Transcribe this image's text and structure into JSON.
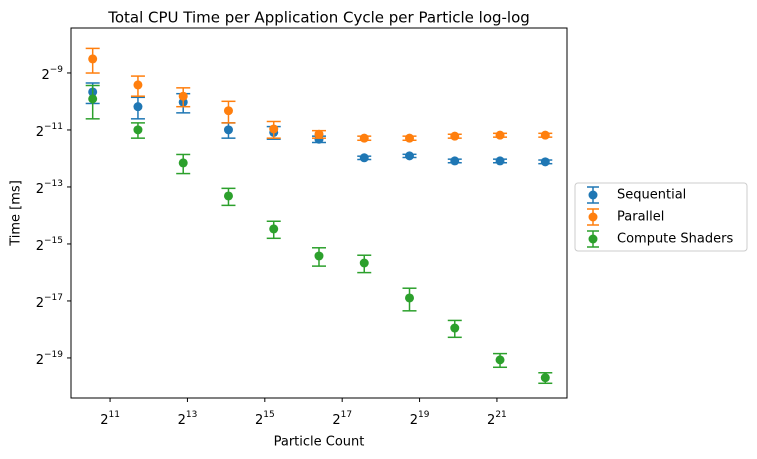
{
  "chart_data": {
    "type": "errorbar",
    "title": "Total CPU Time per Application Cycle per Particle log-log",
    "x_label": "Particle Count",
    "y_label": "Time [ms]",
    "xscale": "log",
    "yscale": "log",
    "log_base": 2,
    "x": [
      1500,
      3375,
      7594,
      17086,
      38443,
      86498,
      194620,
      437894,
      985262,
      2216838,
      4987885
    ],
    "series": [
      {
        "name": "Sequential",
        "color": "#1f77b4",
        "values": [
          0.00123,
          0.00086,
          0.00096,
          0.00049,
          0.00046,
          0.00039,
          0.000248,
          0.00026,
          0.00023,
          0.00023,
          0.000225
        ],
        "errors": [
          0.0003,
          0.00022,
          0.00022,
          9e-05,
          7e-05,
          3e-05,
          1e-05,
          1e-05,
          1e-05,
          1e-05,
          1e-05
        ]
      },
      {
        "name": "Parallel",
        "color": "#ff7f0e",
        "values": [
          0.00275,
          0.00146,
          0.00111,
          0.00078,
          0.0005,
          0.00044,
          0.0004,
          0.0004,
          0.00042,
          0.00043,
          0.00043
        ],
        "errors": [
          0.0008,
          0.00035,
          0.00025,
          0.0002,
          0.0001,
          4e-05,
          2e-05,
          2e-05,
          2e-05,
          2e-05,
          2e-05
        ]
      },
      {
        "name": "Compute Shaders",
        "color": "#2ca02c",
        "values": [
          0.00104,
          0.00049,
          0.000219,
          9.8e-05,
          4.4e-05,
          2.28e-05,
          1.92e-05,
          8.2e-06,
          3.95e-06,
          1.82e-06,
          1.18e-06
        ],
        "errors": [
          0.0004,
          9e-05,
          5e-05,
          2e-05,
          9e-06,
          5e-06,
          4e-06,
          2.2e-06,
          8e-07,
          3e-07,
          1.5e-07
        ]
      }
    ],
    "xlim": [
      1017,
      7360000
    ],
    "ylim": [
      7.2e-07,
      0.00583
    ],
    "xticks": [
      {
        "value": 2048,
        "label": "2",
        "exponent": "11"
      },
      {
        "value": 8192,
        "label": "2",
        "exponent": "13"
      },
      {
        "value": 32768,
        "label": "2",
        "exponent": "15"
      },
      {
        "value": 131072,
        "label": "2",
        "exponent": "17"
      },
      {
        "value": 524288,
        "label": "2",
        "exponent": "19"
      },
      {
        "value": 2097152,
        "label": "2",
        "exponent": "21"
      }
    ],
    "yticks": [
      {
        "value": 0.001953125,
        "label": "2",
        "exponent": "−9"
      },
      {
        "value": 0.00048828125,
        "label": "2",
        "exponent": "−11"
      },
      {
        "value": 0.0001220703125,
        "label": "2",
        "exponent": "−13"
      },
      {
        "value": 3.0517578125e-05,
        "label": "2",
        "exponent": "−15"
      },
      {
        "value": 7.62939453125e-06,
        "label": "2",
        "exponent": "−17"
      },
      {
        "value": 1.9073486328125e-06,
        "label": "2",
        "exponent": "−19"
      }
    ],
    "legend": "outside-right"
  }
}
